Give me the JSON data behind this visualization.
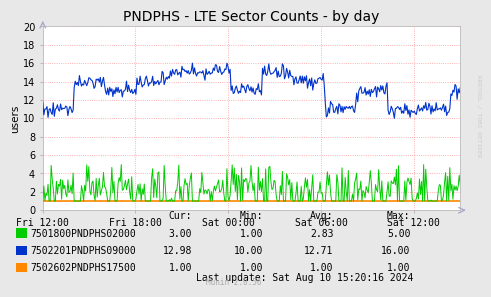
{
  "title": "PNDPHS - LTE Sector Counts - by day",
  "ylabel": "users",
  "ylim": [
    0,
    20
  ],
  "yticks": [
    0,
    2,
    4,
    6,
    8,
    10,
    12,
    14,
    16,
    18,
    20
  ],
  "xtick_labels": [
    "Fri 12:00",
    "Fri 18:00",
    "Sat 00:00",
    "Sat 06:00",
    "Sat 12:00"
  ],
  "xtick_positions": [
    0.0,
    0.222,
    0.444,
    0.667,
    0.889
  ],
  "fig_bg_color": "#e8e8e8",
  "plot_bg_color": "#ffffff",
  "grid_color": "#ff9999",
  "series": [
    {
      "name": "7501800PNDPHS02000",
      "color": "#00cc00",
      "cur": 3.0,
      "min": 1.0,
      "avg": 2.83,
      "max": 5.0
    },
    {
      "name": "7502201PNDPHS09000",
      "color": "#0033cc",
      "cur": 12.98,
      "min": 10.0,
      "avg": 12.71,
      "max": 16.0
    },
    {
      "name": "7502602PNDPHS17500",
      "color": "#ff8800",
      "cur": 1.0,
      "min": 1.0,
      "avg": 1.0,
      "max": 1.0
    }
  ],
  "col_headers": [
    "Cur:",
    "Min:",
    "Avg:",
    "Max:"
  ],
  "last_update": "Last update: Sat Aug 10 15:20:16 2024",
  "munin_version": "Munin 2.0.56",
  "rrdtool_label": "RRDTOOL / TOBI OETIKER",
  "title_fontsize": 10,
  "axis_fontsize": 7,
  "legend_fontsize": 7
}
